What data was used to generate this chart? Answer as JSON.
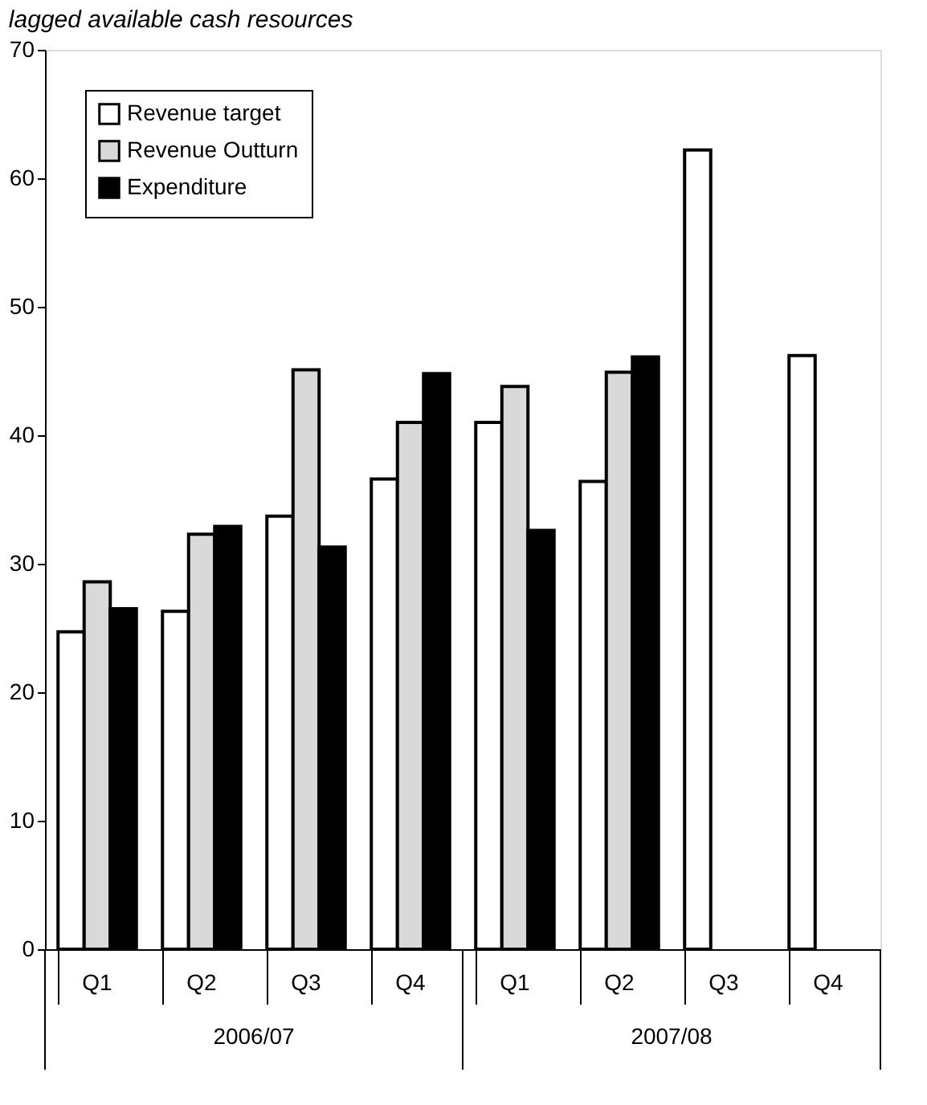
{
  "chart_data": {
    "type": "bar",
    "title": "lagged available cash resources",
    "categories": [
      "Q1",
      "Q2",
      "Q3",
      "Q4",
      "Q1",
      "Q2",
      "Q3",
      "Q4"
    ],
    "annotations": [
      "2006/07",
      "2007/08"
    ],
    "series": [
      {
        "name": "Revenue target",
        "color": "#ffffff",
        "values": [
          24.7,
          26.3,
          33.7,
          36.6,
          41.0,
          36.4,
          62.2,
          46.2
        ]
      },
      {
        "name": "Revenue Outturn",
        "color": "#d9d9d9",
        "values": [
          28.6,
          32.3,
          45.1,
          41.0,
          43.8,
          44.9,
          null,
          null
        ]
      },
      {
        "name": "Expenditure",
        "color": "#000000",
        "values": [
          26.5,
          32.9,
          31.3,
          44.8,
          32.6,
          46.1,
          null,
          null
        ]
      }
    ],
    "ylim": [
      0,
      70
    ],
    "yticks": [
      0,
      10,
      20,
      30,
      40,
      50,
      60,
      70
    ],
    "grid": false,
    "legend": "top left"
  }
}
